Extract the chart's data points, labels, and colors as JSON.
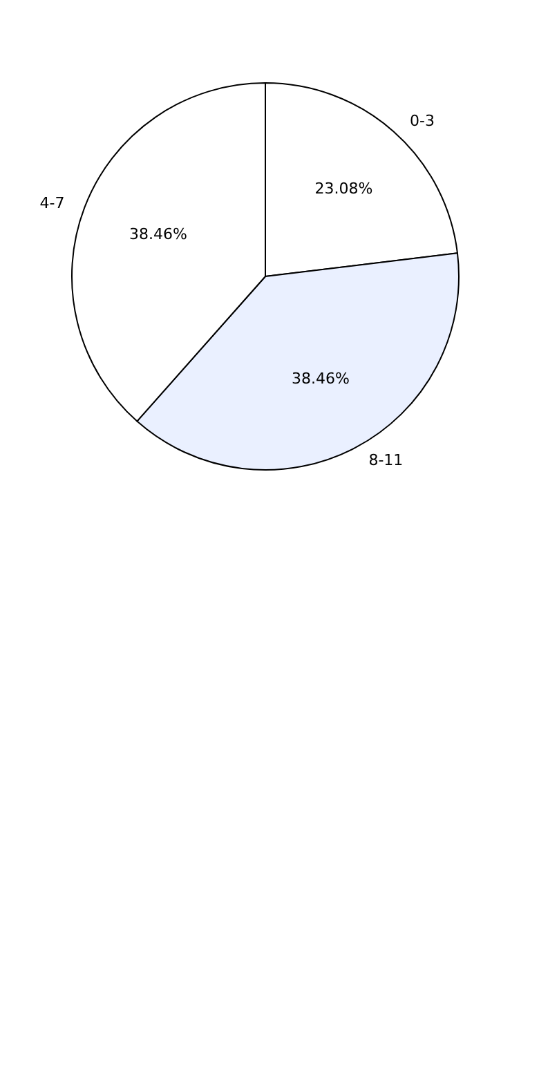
{
  "chart_data": {
    "type": "pie",
    "categories": [
      "0-3",
      "8-11",
      "4-7"
    ],
    "values": [
      23.08,
      38.46,
      38.46
    ],
    "value_labels": [
      "23.08%",
      "38.46%",
      "38.46%"
    ],
    "colors": [
      "#ffffff",
      "#eaf0ff",
      "#ffffff"
    ],
    "legend": false
  }
}
